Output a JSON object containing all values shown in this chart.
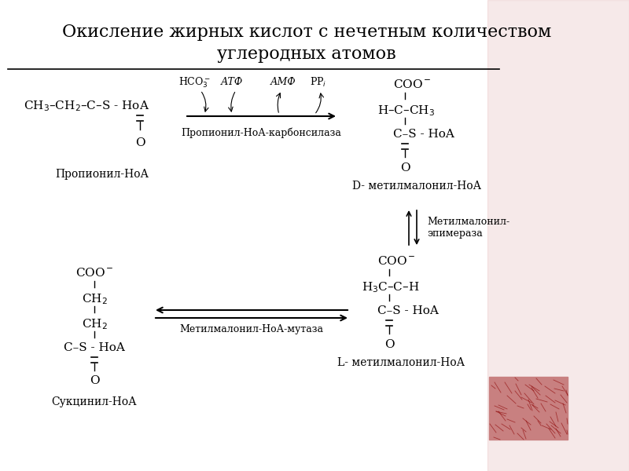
{
  "title_line1": "Окисление жирных кислот с нечетным количеством",
  "title_line2": "углеродных атомов",
  "bg_color": "#ffffff",
  "pink_bg_color": "#e8c0c0",
  "text_color": "#000000",
  "propionyl_label": "Пропионил-НоА",
  "succinyl_label": "Сукцинил-НоА",
  "d_methyl_label": "D- метилмалонил-НоА",
  "l_methyl_label": "L- метилмалонил-НоА",
  "enzyme1": "Пропионил-НоА-карбонсилаза",
  "enzyme2_line1": "Метилмалонил-",
  "enzyme2_line2": "эпимераза",
  "enzyme3": "Метилмалонил-НоА-мутаза",
  "hco3": "HCO",
  "atf": "АТФ",
  "amf": "АМФ",
  "ppi": "PP",
  "title_fs": 16,
  "label_fs": 10,
  "formula_fs": 11,
  "small_fs": 9
}
